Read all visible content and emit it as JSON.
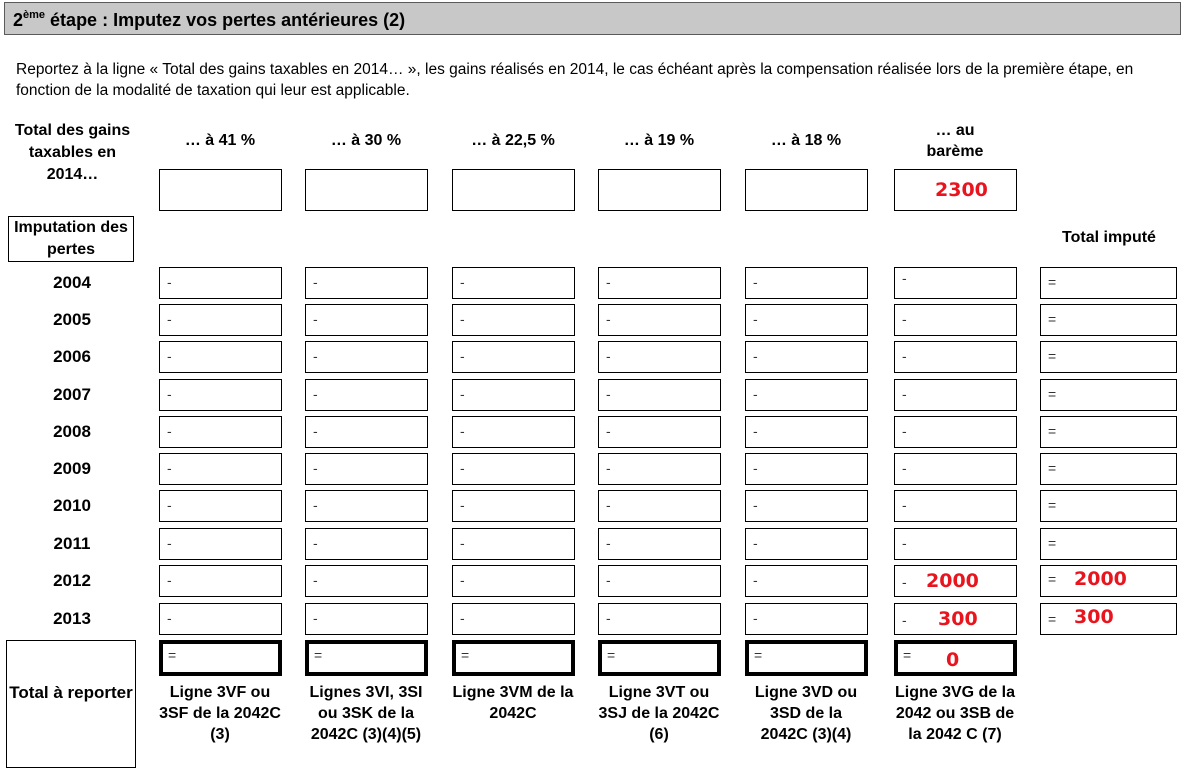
{
  "header": {
    "step_sup": "ème",
    "step_num": "2",
    "title": " étape : Imputez vos pertes antérieures (2)"
  },
  "intro": "Reportez à la ligne « Total des gains taxables en 2014… », les gains réalisés en 2014, le cas échéant après la compensation réalisée lors de la première étape, en fonction de la modalité de taxation qui leur est applicable.",
  "row_labels": {
    "total_gains": "Total des gains taxables en 2014…",
    "imputation": "Imputation des pertes",
    "total_impute": "Total imputé",
    "total_report": "Total à reporter"
  },
  "columns": [
    {
      "header": "… à 41 %",
      "gain": "",
      "line_label": "Ligne 3VF ou 3SF de la 2042C (3)",
      "total": ""
    },
    {
      "header": "… à 30 %",
      "gain": "",
      "line_label": "Lignes 3VI, 3SI ou 3SK de la 2042C (3)(4)(5)",
      "total": ""
    },
    {
      "header": "… à 22,5 %",
      "gain": "",
      "line_label": "Ligne 3VM de la 2042C",
      "total": ""
    },
    {
      "header": "… à 19 %",
      "gain": "",
      "line_label": "Ligne 3VT ou 3SJ de la 2042C (6)",
      "total": ""
    },
    {
      "header": "… à 18 %",
      "gain": "",
      "line_label": "Ligne 3VD ou 3SD de la 2042C (3)(4)",
      "total": ""
    },
    {
      "header": "… au barème",
      "gain": "2300",
      "line_label": "Ligne 3VG de la 2042 ou 3SB de la 2042 C (7)",
      "total": "0"
    }
  ],
  "years": [
    "2004",
    "2005",
    "2006",
    "2007",
    "2008",
    "2009",
    "2010",
    "2011",
    "2012",
    "2013"
  ],
  "bareme_values": [
    "",
    "",
    "",
    "",
    "",
    "",
    "",
    "",
    "2000",
    "300"
  ],
  "total_impute_values": [
    "",
    "",
    "",
    "",
    "",
    "",
    "",
    "",
    "2000",
    "300"
  ],
  "signs": {
    "minus": "-",
    "equals": "="
  },
  "colors": {
    "handwritten": "#e8141e",
    "header_bg": "#c8c8c8"
  }
}
